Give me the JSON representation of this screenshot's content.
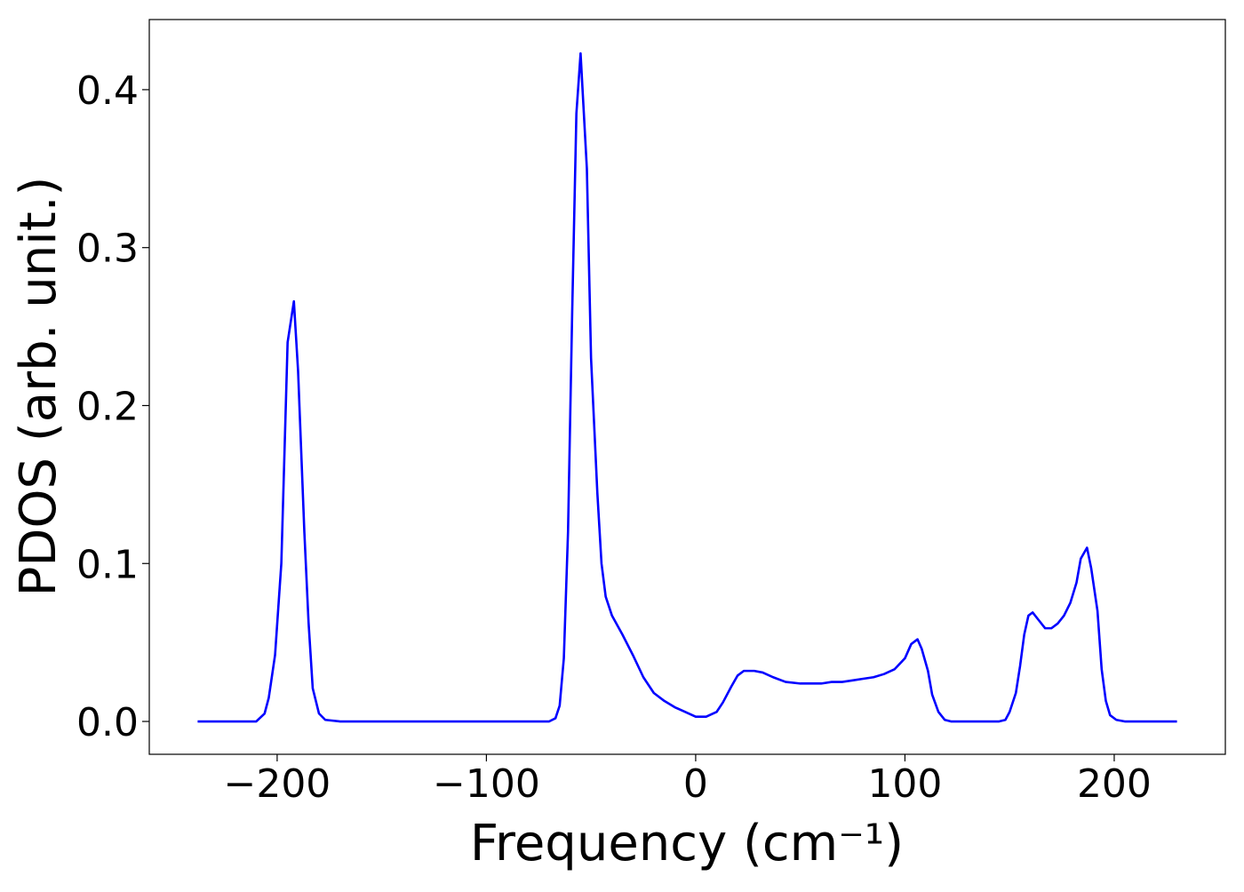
{
  "chart_data": {
    "type": "line",
    "x_label": "Frequency (cm⁻¹)",
    "y_label": "PDOS (arb. unit.)",
    "x": [
      -238,
      -210,
      -206,
      -204,
      -201,
      -198,
      -195,
      -192,
      -190,
      -187,
      -185,
      -183,
      -180,
      -177,
      -170,
      -70,
      -67,
      -65,
      -63,
      -61,
      -59,
      -57,
      -55,
      -52,
      -50,
      -47,
      -45,
      -43,
      -40,
      -35,
      -30,
      -25,
      -20,
      -15,
      -10,
      -5,
      0,
      5,
      10,
      13,
      17,
      20,
      23,
      28,
      32,
      37,
      43,
      50,
      55,
      60,
      65,
      70,
      75,
      80,
      85,
      90,
      95,
      100,
      103,
      106,
      108,
      111,
      113,
      116,
      119,
      122,
      145,
      148,
      150,
      153,
      155,
      157,
      159,
      161,
      164,
      167,
      170,
      173,
      176,
      179,
      182,
      184,
      187,
      189,
      192,
      194,
      196,
      198,
      201,
      205,
      230
    ],
    "series": [
      {
        "color": "#0000ff",
        "values": [
          0,
          0,
          0.005,
          0.015,
          0.042,
          0.1,
          0.24,
          0.266,
          0.222,
          0.12,
          0.063,
          0.021,
          0.005,
          0.001,
          0,
          0,
          0.002,
          0.01,
          0.04,
          0.12,
          0.26,
          0.385,
          0.423,
          0.35,
          0.23,
          0.145,
          0.1,
          0.079,
          0.067,
          0.055,
          0.042,
          0.028,
          0.018,
          0.013,
          0.009,
          0.006,
          0.003,
          0.003,
          0.006,
          0.012,
          0.022,
          0.029,
          0.032,
          0.032,
          0.031,
          0.028,
          0.025,
          0.024,
          0.024,
          0.024,
          0.025,
          0.025,
          0.026,
          0.027,
          0.028,
          0.03,
          0.033,
          0.04,
          0.049,
          0.052,
          0.046,
          0.032,
          0.017,
          0.006,
          0.001,
          0,
          0,
          0.001,
          0.006,
          0.018,
          0.035,
          0.055,
          0.067,
          0.069,
          0.064,
          0.059,
          0.059,
          0.062,
          0.067,
          0.075,
          0.088,
          0.103,
          0.11,
          0.097,
          0.07,
          0.033,
          0.013,
          0.004,
          0.001,
          0,
          0
        ]
      }
    ],
    "xlim": [
      -261.1,
      253.1
    ],
    "ylim": [
      -0.0208,
      0.4444
    ],
    "xticks": [
      {
        "value": -200,
        "label": "−200"
      },
      {
        "value": -100,
        "label": "−100"
      },
      0,
      100,
      200
    ],
    "yticks": [
      {
        "value": 0,
        "label": "0.0"
      },
      0.1,
      0.2,
      0.3,
      0.4
    ]
  }
}
